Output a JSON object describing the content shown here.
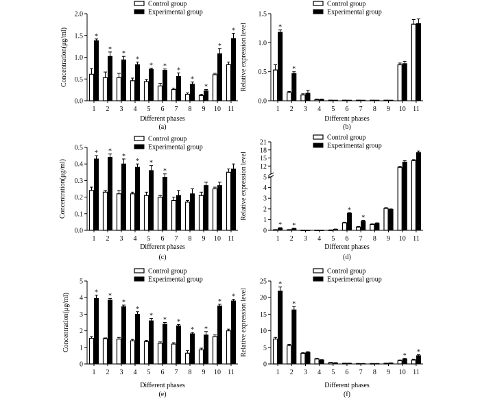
{
  "chart_data": [
    {
      "id": "a",
      "type": "bar",
      "caption": "(a)",
      "xlabel": "Different phases",
      "ylabel": "Concentration(μg/ml)",
      "categories": [
        "1",
        "2",
        "3",
        "4",
        "5",
        "6",
        "7",
        "8",
        "9",
        "10",
        "11"
      ],
      "ylim": [
        0,
        2.0
      ],
      "yticks": [
        "0.0",
        "0.5",
        "1.0",
        "1.5",
        "2.0"
      ],
      "series": [
        {
          "name": "Control group",
          "values": [
            0.61,
            0.53,
            0.53,
            0.46,
            0.44,
            0.34,
            0.26,
            0.15,
            0.12,
            0.6,
            0.83
          ],
          "errors": [
            0.13,
            0.13,
            0.1,
            0.06,
            0.05,
            0.06,
            0.03,
            0.03,
            0.03,
            0.03,
            0.06
          ]
        },
        {
          "name": "Experimental group",
          "values": [
            1.38,
            1.02,
            0.94,
            0.83,
            0.72,
            0.7,
            0.56,
            0.38,
            0.23,
            1.08,
            1.43
          ],
          "errors": [
            0.04,
            0.1,
            0.08,
            0.06,
            0.03,
            0.03,
            0.08,
            0.05,
            0.03,
            0.12,
            0.12
          ]
        }
      ],
      "significant": [
        true,
        true,
        true,
        true,
        true,
        true,
        true,
        true,
        true,
        true,
        true
      ]
    },
    {
      "id": "b",
      "type": "bar",
      "caption": "(b)",
      "xlabel": "Different phases",
      "ylabel": "Relative expression level",
      "categories": [
        "1",
        "2",
        "3",
        "4",
        "5",
        "6",
        "7",
        "8",
        "9",
        "10",
        "11"
      ],
      "ylim": [
        0,
        1.5
      ],
      "yticks": [
        "0.0",
        "0.5",
        "1.0",
        "1.5"
      ],
      "series": [
        {
          "name": "Control group",
          "values": [
            0.53,
            0.14,
            0.1,
            0.02,
            0.01,
            0.01,
            0.01,
            0.01,
            0.01,
            0.62,
            1.32
          ],
          "errors": [
            0.09,
            0.02,
            0.02,
            0.01,
            0,
            0,
            0,
            0,
            0,
            0.03,
            0.08
          ]
        },
        {
          "name": "Experimental group",
          "values": [
            1.18,
            0.47,
            0.13,
            0.02,
            0.01,
            0.01,
            0.01,
            0.01,
            0.01,
            0.64,
            1.33
          ],
          "errors": [
            0.04,
            0.03,
            0.05,
            0.01,
            0,
            0,
            0,
            0,
            0,
            0.04,
            0.08
          ]
        }
      ],
      "significant": [
        true,
        true,
        false,
        false,
        false,
        false,
        false,
        false,
        false,
        false,
        false
      ]
    },
    {
      "id": "c",
      "type": "bar",
      "caption": "(c)",
      "xlabel": "Different phases",
      "ylabel": "Concentration(μg/ml)",
      "categories": [
        "1",
        "2",
        "3",
        "4",
        "5",
        "6",
        "7",
        "8",
        "9",
        "10",
        "11"
      ],
      "ylim": [
        0,
        0.5
      ],
      "yticks": [
        "0.0",
        "0.1",
        "0.2",
        "0.3",
        "0.4",
        "0.5"
      ],
      "series": [
        {
          "name": "Control group",
          "values": [
            0.24,
            0.23,
            0.22,
            0.22,
            0.21,
            0.2,
            0.18,
            0.17,
            0.21,
            0.25,
            0.35
          ],
          "errors": [
            0.02,
            0.01,
            0.02,
            0.01,
            0.02,
            0.01,
            0.02,
            0.01,
            0.02,
            0.01,
            0.02
          ]
        },
        {
          "name": "Experimental group",
          "values": [
            0.43,
            0.44,
            0.4,
            0.38,
            0.36,
            0.32,
            0.21,
            0.22,
            0.27,
            0.27,
            0.37
          ],
          "errors": [
            0.02,
            0.02,
            0.03,
            0.02,
            0.03,
            0.02,
            0.03,
            0.03,
            0.02,
            0.02,
            0.03
          ]
        }
      ],
      "significant": [
        true,
        true,
        true,
        true,
        true,
        true,
        false,
        false,
        false,
        false,
        false
      ]
    },
    {
      "id": "d",
      "type": "bar",
      "caption": "(d)",
      "xlabel": "Different phases",
      "ylabel": "Relative expression level",
      "categories": [
        "1",
        "2",
        "3",
        "4",
        "5",
        "6",
        "7",
        "8",
        "9",
        "10",
        "11"
      ],
      "axis_break": {
        "lower": [
          0,
          5
        ],
        "upper": [
          9,
          21
        ]
      },
      "yticks_lower": [
        "0",
        "1",
        "2",
        "3",
        "4",
        "5"
      ],
      "yticks_upper": [
        "12",
        "15",
        "18",
        "21"
      ],
      "series": [
        {
          "name": "Control group",
          "values": [
            0.05,
            0.05,
            0.01,
            0.01,
            0.02,
            0.7,
            0.3,
            0.55,
            2.05,
            11.5,
            14.0
          ],
          "errors": [
            0.02,
            0.02,
            0,
            0,
            0.02,
            0.05,
            0.05,
            0.05,
            0.07,
            0.4,
            0.4
          ]
        },
        {
          "name": "Experimental group",
          "values": [
            0.2,
            0.15,
            0.01,
            0.01,
            0.1,
            1.6,
            0.85,
            0.65,
            1.95,
            13.5,
            17.0
          ],
          "errors": [
            0.05,
            0.04,
            0,
            0,
            0.02,
            0.05,
            0.08,
            0.05,
            0.05,
            0.5,
            0.6
          ]
        }
      ],
      "significant": [
        true,
        true,
        false,
        false,
        false,
        true,
        true,
        false,
        false,
        false,
        false
      ]
    },
    {
      "id": "e",
      "type": "bar",
      "caption": "(e)",
      "xlabel": "Different phases",
      "ylabel": "Concentration(μg/ml)",
      "categories": [
        "1",
        "2",
        "3",
        "4",
        "5",
        "6",
        "7",
        "8",
        "9",
        "10",
        "11"
      ],
      "ylim": [
        0,
        5
      ],
      "yticks": [
        "0",
        "1",
        "2",
        "3",
        "4",
        "5"
      ],
      "series": [
        {
          "name": "Control group",
          "values": [
            1.55,
            1.52,
            1.5,
            1.4,
            1.35,
            1.25,
            1.2,
            0.65,
            0.85,
            1.65,
            2.0
          ],
          "errors": [
            0.1,
            0.05,
            0.1,
            0.08,
            0.07,
            0.08,
            0.08,
            0.15,
            0.1,
            0.1,
            0.1
          ]
        },
        {
          "name": "Experimental group",
          "values": [
            3.95,
            3.85,
            3.45,
            3.0,
            2.6,
            2.4,
            2.3,
            1.82,
            1.75,
            3.5,
            3.8
          ],
          "errors": [
            0.2,
            0.1,
            0.1,
            0.15,
            0.15,
            0.1,
            0.08,
            0.08,
            0.2,
            0.1,
            0.1
          ]
        }
      ],
      "significant": [
        true,
        true,
        true,
        true,
        true,
        true,
        true,
        true,
        true,
        true,
        true
      ]
    },
    {
      "id": "f",
      "type": "bar",
      "caption": "(f)",
      "xlabel": "Different phases",
      "ylabel": "Relative expression level",
      "categories": [
        "1",
        "2",
        "3",
        "4",
        "5",
        "6",
        "7",
        "8",
        "9",
        "10",
        "11"
      ],
      "ylim": [
        0,
        25
      ],
      "yticks": [
        "0",
        "5",
        "10",
        "15",
        "20",
        "25"
      ],
      "series": [
        {
          "name": "Control group",
          "values": [
            7.5,
            5.5,
            3.2,
            1.5,
            0.4,
            0.2,
            0.1,
            0.1,
            0.2,
            1.0,
            1.2
          ],
          "errors": [
            0.5,
            0.4,
            0.2,
            0.2,
            0.1,
            0.05,
            0.05,
            0.05,
            0.05,
            0.2,
            0.2
          ]
        },
        {
          "name": "Experimental group",
          "values": [
            22.0,
            16.3,
            3.5,
            1.2,
            0.3,
            0.2,
            0.1,
            0.1,
            0.3,
            1.5,
            2.5
          ],
          "errors": [
            1.2,
            1.0,
            0.2,
            0.1,
            0.1,
            0.05,
            0.05,
            0.05,
            0.05,
            0.2,
            0.3
          ]
        }
      ],
      "significant": [
        true,
        true,
        false,
        false,
        false,
        false,
        false,
        false,
        false,
        true,
        true
      ]
    }
  ]
}
